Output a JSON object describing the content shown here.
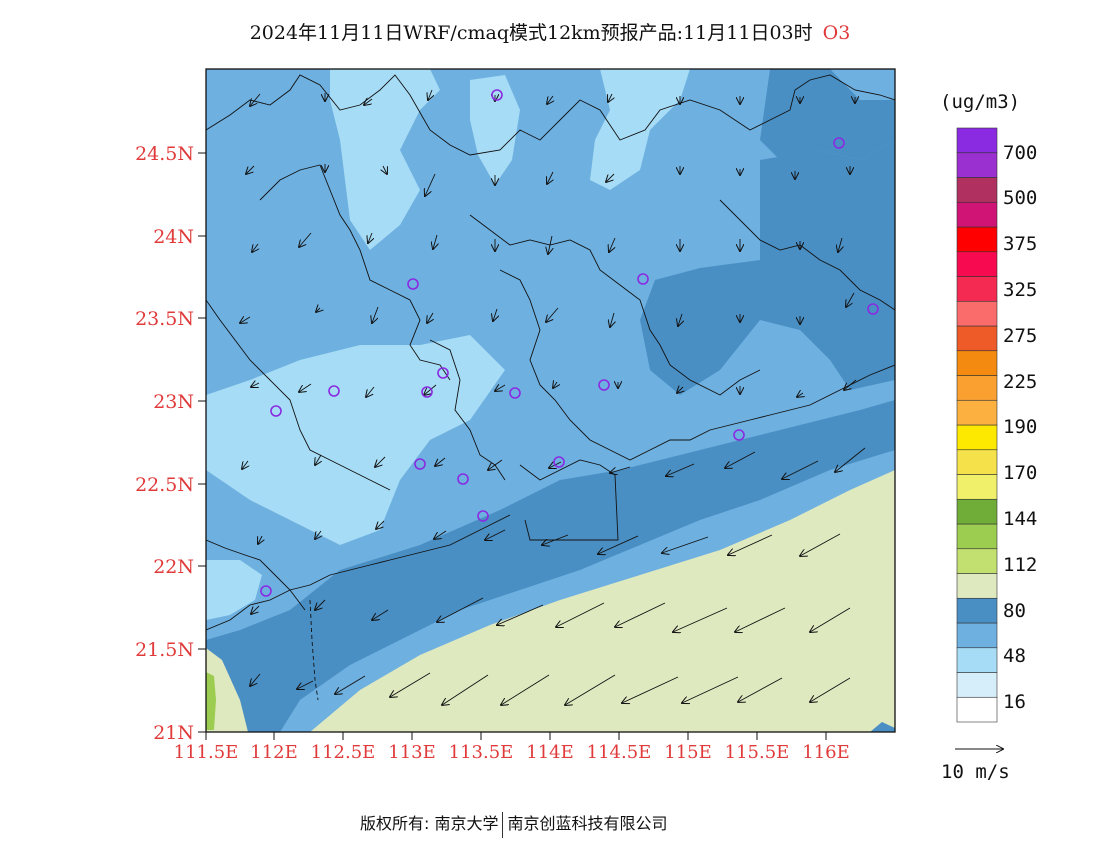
{
  "title": {
    "text": "2024年11月11日WRF/cmaq模式12km预报产品:11月11日03时",
    "species": "O3"
  },
  "axes": {
    "lat_labels": [
      "24.5N",
      "24N",
      "23.5N",
      "23N",
      "22.5N",
      "22N",
      "21.5N",
      "21N"
    ],
    "lon_labels": [
      "111.5E",
      "112E",
      "112.5E",
      "113E",
      "113.5E",
      "114E",
      "114.5E",
      "115E",
      "115.5E",
      "116E"
    ],
    "label_color": "#e03a3a"
  },
  "colorbar": {
    "unit": "(ug/m3)",
    "labels": [
      "700",
      "500",
      "375",
      "325",
      "275",
      "225",
      "190",
      "170",
      "144",
      "112",
      "80",
      "48",
      "16"
    ],
    "colors": [
      "#ffffff",
      "#d6eefa",
      "#a6dcf5",
      "#6eb0e0",
      "#4a8fc4",
      "#dfe9c0",
      "#c2e070",
      "#9ccc50",
      "#6fad38",
      "#f0f06a",
      "#f5e24a",
      "#fde800",
      "#fbb040",
      "#f9a030",
      "#f58a10",
      "#ee5a28",
      "#fa6c6c",
      "#f52a52",
      "#f70a50",
      "#ff0000",
      "#d01476",
      "#b03060",
      "#9a30d0",
      "#8a2be2"
    ]
  },
  "wind_legend": {
    "label": "10 m/s"
  },
  "stations": {
    "color": "#8a2be2"
  },
  "footer": {
    "left": "版权所有: 南京大学",
    "right": "南京创蓝科技有限公司"
  }
}
